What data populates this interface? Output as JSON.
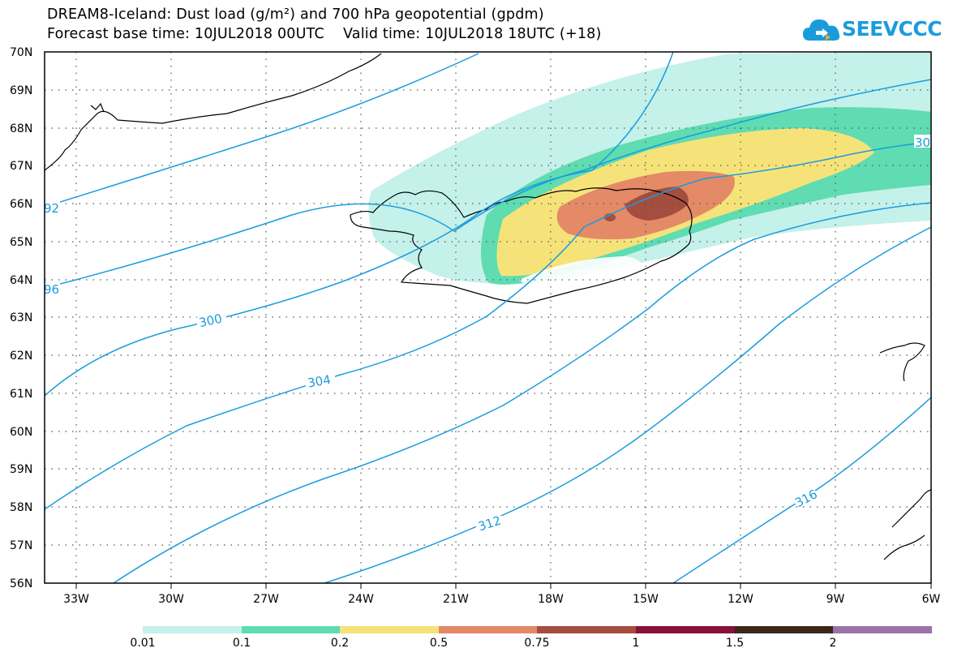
{
  "title_line1": "DREAM8-Iceland: Dust load (g/m²) and 700 hPa geopotential (gpdm)",
  "title_line2": "Forecast base time: 10JUL2018 00UTC    Valid time: 10JUL2018 18UTC (+18)",
  "logo_text": "SEEVCCC",
  "lat_labels": [
    "70N",
    "69N",
    "68N",
    "67N",
    "66N",
    "65N",
    "64N",
    "63N",
    "62N",
    "61N",
    "60N",
    "59N",
    "58N",
    "57N",
    "56N"
  ],
  "lon_labels": [
    "33W",
    "30W",
    "27W",
    "24W",
    "21W",
    "18W",
    "15W",
    "12W",
    "9W",
    "6W"
  ],
  "contour_labels": [
    "92",
    "96",
    "300",
    "304",
    "312",
    "316",
    "30"
  ],
  "colorbar": {
    "labels": [
      "0.01",
      "0.1",
      "0.2",
      "0.5",
      "0.75",
      "1",
      "1.5",
      "2"
    ],
    "colors": [
      "#c4f1ea",
      "#5fdcb1",
      "#f5e37a",
      "#e48a66",
      "#a54d3e",
      "#87113a",
      "#3c2716",
      "#9c73a8"
    ]
  },
  "colors": {
    "contour": "#1a9cdc",
    "coast": "#000000",
    "grid": "#555555"
  }
}
